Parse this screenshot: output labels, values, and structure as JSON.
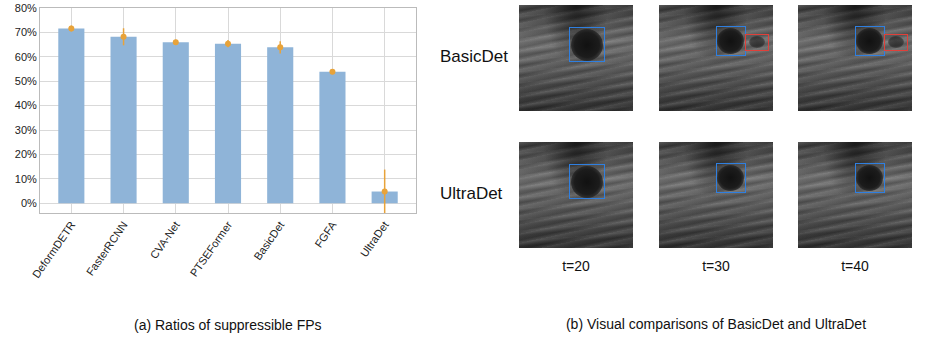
{
  "chart_data": {
    "type": "bar",
    "title": "(a) Ratios of suppressible FPs",
    "categories": [
      "DeformDETR",
      "FasterRCNN",
      "CVA-Net",
      "PTSEFormer",
      "BasicDet",
      "FGFA",
      "UltraDet"
    ],
    "values": [
      71.6,
      68.2,
      66.0,
      65.4,
      63.9,
      53.9,
      4.8
    ],
    "error": [
      1.2,
      3.5,
      1.0,
      1.5,
      2.5,
      1.0,
      9.0
    ],
    "color": "#8fb4d8",
    "error_color": "#e8a33a",
    "marker": "circle",
    "ylim": [
      -4,
      80
    ],
    "yticks": [
      {
        "value": 0,
        "label": "0%"
      },
      {
        "value": 10,
        "label": "10%"
      },
      {
        "value": 20,
        "label": "20%"
      },
      {
        "value": 30,
        "label": "30%"
      },
      {
        "value": 40,
        "label": "40%"
      },
      {
        "value": 50,
        "label": "50%"
      },
      {
        "value": 60,
        "label": "60%"
      },
      {
        "value": 70,
        "label": "70%"
      },
      {
        "value": 80,
        "label": "80%"
      }
    ],
    "grid": true
  },
  "panel_b": {
    "caption": "(b) Visual comparisons of BasicDet and UltraDet",
    "columns": [
      "t=20",
      "t=30",
      "t=40"
    ],
    "rows": [
      {
        "label": "BasicDet",
        "false_positive": [
          false,
          true,
          true
        ]
      },
      {
        "label": "UltraDet",
        "false_positive": [
          false,
          false,
          false
        ]
      }
    ]
  }
}
